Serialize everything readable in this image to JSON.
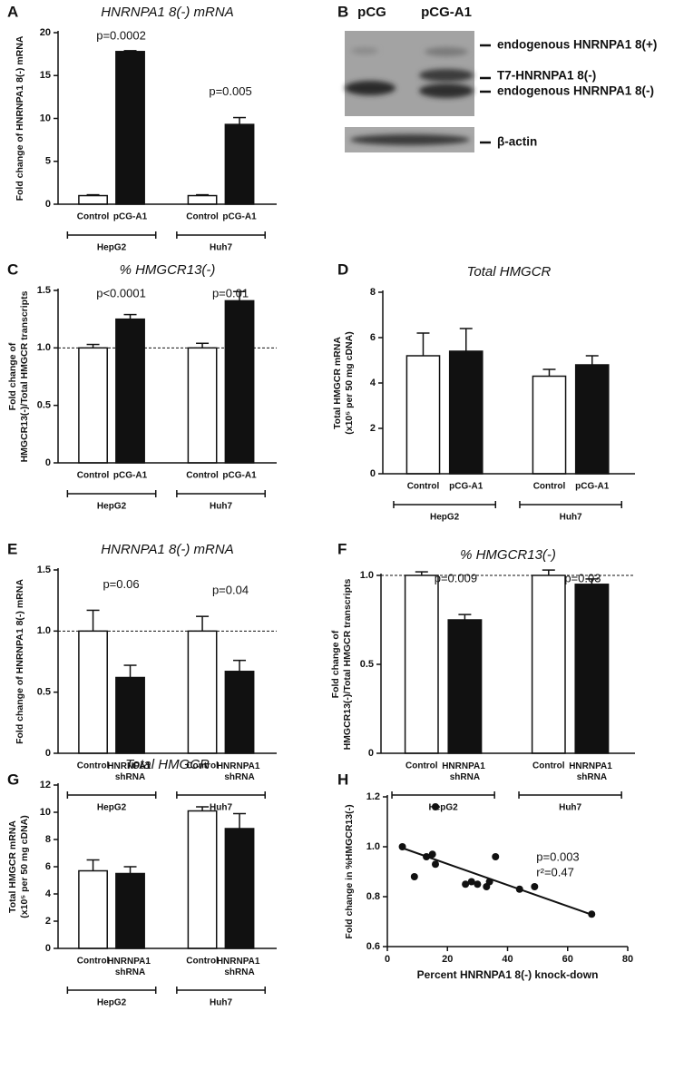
{
  "blot": {
    "panel": "B",
    "lanes": [
      "pCG",
      "pCG-A1"
    ],
    "bands": [
      "endogenous HNRNPA1 8(+)",
      "T7-HNRNPA1 8(-)",
      "endogenous HNRNPA1 8(-)"
    ],
    "loading_control": "β-actin"
  },
  "chart_data": [
    {
      "type": "bar",
      "panel": "A",
      "title": "HNRNPA1 8(-) mRNA",
      "ylabel": [
        "Fold change of HNRNPA1 8(-) mRNA"
      ],
      "categories": [
        "Control",
        "pCG-A1",
        "Control",
        "pCG-A1"
      ],
      "groups": [
        "HepG2",
        "Huh7"
      ],
      "values": [
        1,
        17.8,
        1,
        9.3
      ],
      "errors": [
        0.1,
        0.1,
        0.1,
        0.8
      ],
      "colors": [
        "#ffffff",
        "#111111",
        "#ffffff",
        "#111111"
      ],
      "annotations": [
        "p=0.0002",
        "p=0.005"
      ],
      "ylim": [
        0,
        20
      ],
      "yticks": [
        0,
        5,
        10,
        15,
        20
      ]
    },
    {
      "type": "bar",
      "panel": "C",
      "title": "% HMGCR13(-)",
      "ylabel": [
        "Fold change of",
        "HMGCR13(-)/Total HMGCR transcripts"
      ],
      "categories": [
        "Control",
        "pCG-A1",
        "Control",
        "pCG-A1"
      ],
      "groups": [
        "HepG2",
        "Huh7"
      ],
      "values": [
        1,
        1.25,
        1,
        1.41
      ],
      "errors": [
        0.03,
        0.04,
        0.04,
        0.08
      ],
      "colors": [
        "#ffffff",
        "#111111",
        "#ffffff",
        "#111111"
      ],
      "annotations": [
        "p<0.0001",
        "p=0.01"
      ],
      "refline": 1,
      "ylim": [
        0,
        1.5
      ],
      "yticks": [
        0,
        0.5,
        {
          "value": 1,
          "label": "1.0"
        },
        1.5
      ]
    },
    {
      "type": "bar",
      "panel": "D",
      "title": "Total HMGCR",
      "ylabel": [
        "Total HMGCR mRNA",
        "(x10⁵ per 50 mg cDNA)"
      ],
      "categories": [
        "Control",
        "pCG-A1",
        "Control",
        "pCG-A1"
      ],
      "groups": [
        "HepG2",
        "Huh7"
      ],
      "values": [
        5.2,
        5.4,
        4.3,
        4.8
      ],
      "errors": [
        1.0,
        1.0,
        0.3,
        0.4
      ],
      "colors": [
        "#ffffff",
        "#111111",
        "#ffffff",
        "#111111"
      ],
      "ylim": [
        0,
        8
      ],
      "yticks": [
        0,
        2,
        4,
        6,
        8
      ]
    },
    {
      "type": "bar",
      "panel": "E",
      "title": "HNRNPA1 8(-) mRNA",
      "ylabel": [
        "Fold change of HNRNPA1 8(-) mRNA"
      ],
      "categories": [
        "Control",
        "HNRNPA1 shRNA",
        "Control",
        "HNRNPA1 shRNA"
      ],
      "groups": [
        "HepG2",
        "Huh7"
      ],
      "values": [
        1,
        0.62,
        1,
        0.67
      ],
      "errors": [
        0.17,
        0.1,
        0.12,
        0.09
      ],
      "colors": [
        "#ffffff",
        "#111111",
        "#ffffff",
        "#111111"
      ],
      "annotations": [
        "p=0.06",
        "p=0.04"
      ],
      "refline": 1,
      "ylim": [
        0,
        1.5
      ],
      "yticks": [
        0,
        0.5,
        {
          "value": 1,
          "label": "1.0"
        },
        1.5
      ]
    },
    {
      "type": "bar",
      "panel": "F",
      "title": "% HMGCR13(-)",
      "ylabel": [
        "Fold change of",
        "HMGCR13(-)/Total HMGCR transcripts"
      ],
      "categories": [
        "Control",
        "HNRNPA1 shRNA",
        "Control",
        "HNRNPA1 shRNA"
      ],
      "groups": [
        "HepG2",
        "Huh7"
      ],
      "values": [
        1,
        0.75,
        1,
        0.95
      ],
      "errors": [
        0.02,
        0.03,
        0.03,
        0.03
      ],
      "colors": [
        "#ffffff",
        "#111111",
        "#ffffff",
        "#111111"
      ],
      "annotations": [
        "p=0.009",
        "p=0.03"
      ],
      "refline": 1,
      "ylim": [
        0,
        1
      ],
      "yticks": [
        0,
        0.5,
        {
          "value": 1,
          "label": "1.0"
        }
      ]
    },
    {
      "type": "bar",
      "panel": "G",
      "title": "Total HMGCR",
      "ylabel": [
        "Total HMGCR mRNA",
        "(x10⁵ per 50 mg cDNA)"
      ],
      "categories": [
        "Control",
        "HNRNPA1 shRNA",
        "Control",
        "HNRNPA1 shRNA"
      ],
      "groups": [
        "HepG2",
        "Huh7"
      ],
      "values": [
        5.7,
        5.5,
        10.1,
        8.8
      ],
      "errors": [
        0.8,
        0.5,
        0.3,
        1.1
      ],
      "colors": [
        "#ffffff",
        "#111111",
        "#ffffff",
        "#111111"
      ],
      "ylim": [
        0,
        12
      ],
      "yticks": [
        0,
        2,
        4,
        6,
        8,
        10,
        12
      ]
    },
    {
      "type": "scatter",
      "panel": "H",
      "xlabel": "Percent HNRNPA1 8(-) knock-down",
      "ylabel": [
        "Fold change in %HMGCR13(-)"
      ],
      "x": [
        5,
        9,
        13,
        15,
        16,
        16,
        26,
        28,
        30,
        33,
        34,
        36,
        44,
        49,
        68
      ],
      "values": [
        1.0,
        0.88,
        0.96,
        0.97,
        0.93,
        1.16,
        0.85,
        0.86,
        0.85,
        0.84,
        0.86,
        0.96,
        0.83,
        0.84,
        0.73
      ],
      "color": "#111111",
      "fit": {
        "x": [
          5,
          68
        ],
        "y": [
          0.995,
          0.728
        ]
      },
      "annotations": [
        "p=0.003",
        "r²=0.47"
      ],
      "xlim": [
        0,
        80
      ],
      "xticks": [
        0,
        20,
        40,
        60,
        80
      ],
      "ylim": [
        0.6,
        1.2
      ],
      "yticks": [
        0.6,
        0.8,
        {
          "value": 1,
          "label": "1.0"
        },
        1.2
      ]
    }
  ]
}
